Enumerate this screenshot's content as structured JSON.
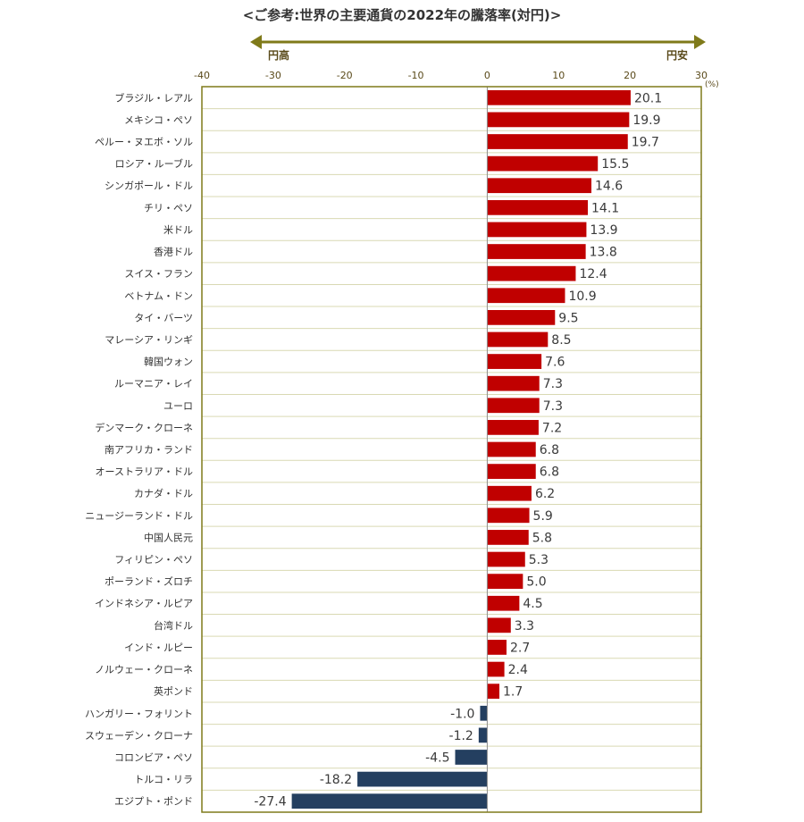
{
  "chart_data": {
    "type": "bar",
    "orientation": "horizontal",
    "title": "<ご参考:世界の主要通貨の2022年の騰落率(対円)>",
    "unit": "(%)",
    "direction_left": "円高",
    "direction_right": "円安",
    "xlim": [
      -40,
      30
    ],
    "ticks": [
      -40,
      -30,
      -20,
      -10,
      0,
      10,
      20,
      30
    ],
    "colors": {
      "positive": "#c00000",
      "negative": "#243f60",
      "frame": "#7f7a1a",
      "arrow": "#7f7a1a",
      "grid": "#d9d9b3"
    },
    "categories": [
      "ブラジル・レアル",
      "メキシコ・ペソ",
      "ペルー・ヌエボ・ソル",
      "ロシア・ルーブル",
      "シンガポール・ドル",
      "チリ・ペソ",
      "米ドル",
      "香港ドル",
      "スイス・フラン",
      "ベトナム・ドン",
      "タイ・バーツ",
      "マレーシア・リンギ",
      "韓国ウォン",
      "ルーマニア・レイ",
      "ユーロ",
      "デンマーク・クローネ",
      "南アフリカ・ランド",
      "オーストラリア・ドル",
      "カナダ・ドル",
      "ニュージーランド・ドル",
      "中国人民元",
      "フィリピン・ペソ",
      "ポーランド・ズロチ",
      "インドネシア・ルピア",
      "台湾ドル",
      "インド・ルピー",
      "ノルウェー・クローネ",
      "英ポンド",
      "ハンガリー・フォリント",
      "スウェーデン・クローナ",
      "コロンビア・ペソ",
      "トルコ・リラ",
      "エジプト・ポンド"
    ],
    "values": [
      20.1,
      19.9,
      19.7,
      15.5,
      14.6,
      14.1,
      13.9,
      13.8,
      12.4,
      10.9,
      9.5,
      8.5,
      7.6,
      7.3,
      7.3,
      7.2,
      6.8,
      6.8,
      6.2,
      5.9,
      5.8,
      5.3,
      5.0,
      4.5,
      3.3,
      2.7,
      2.4,
      1.7,
      -1.0,
      -1.2,
      -4.5,
      -18.2,
      -27.4
    ]
  }
}
